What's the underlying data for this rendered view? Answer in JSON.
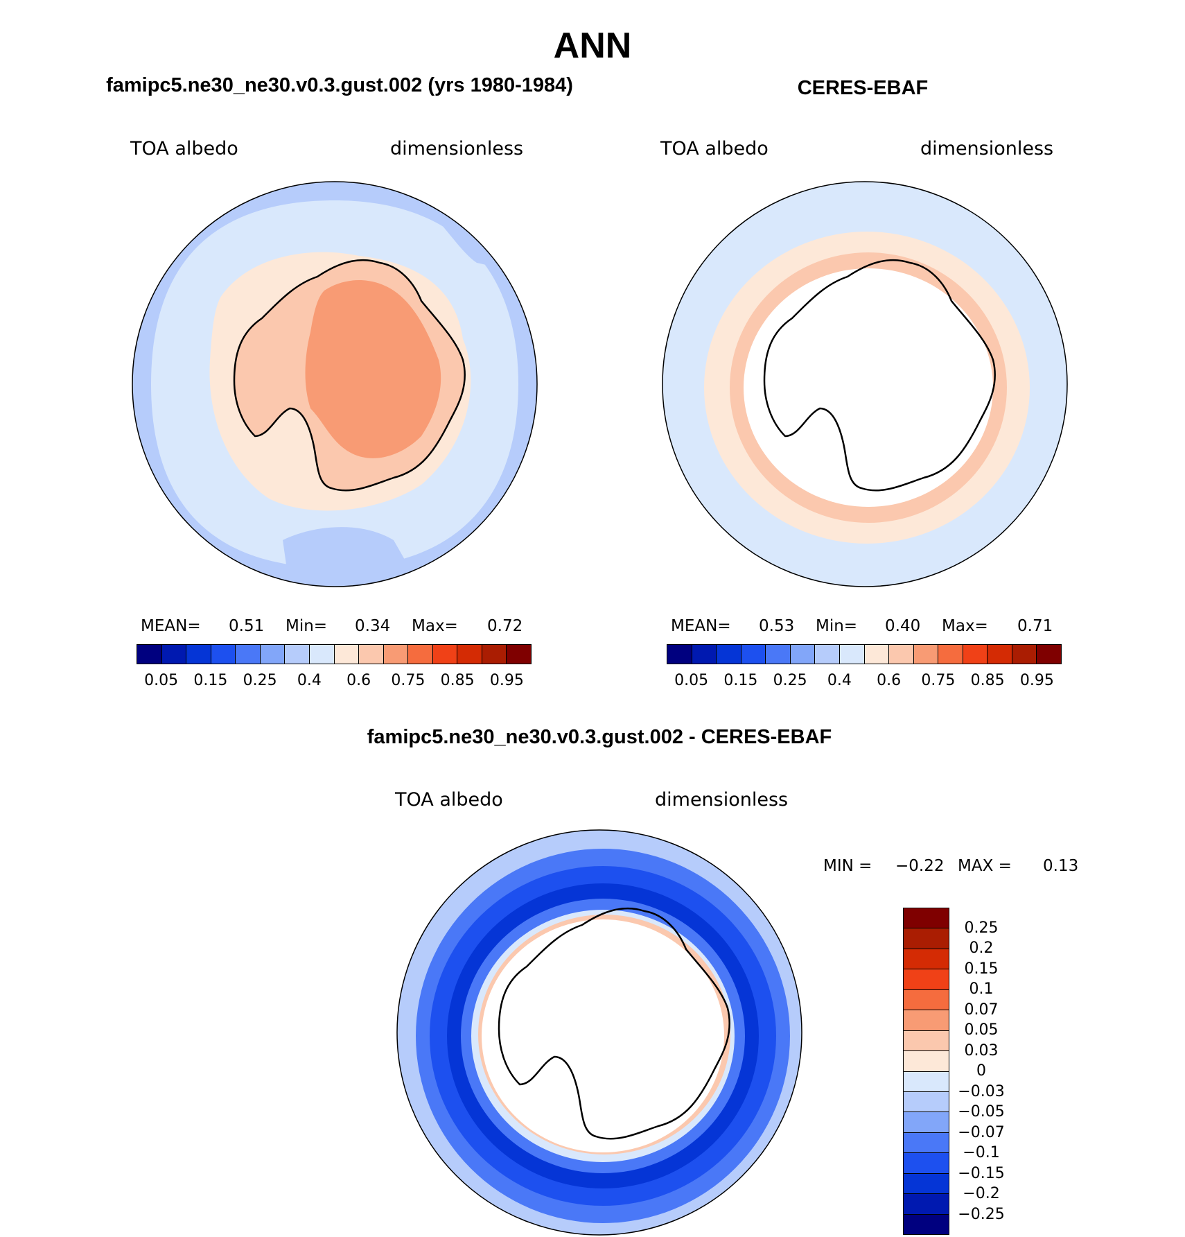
{
  "title": "ANN",
  "panels": {
    "model": {
      "title": "famipc5.ne30_ne30.v0.3.gust.002 (yrs 1980-1984)",
      "left_label": "TOA albedo",
      "right_label": "dimensionless",
      "stats": {
        "mean_label": "MEAN=",
        "mean": "0.51",
        "min_label": "Min=",
        "min": "0.34",
        "max_label": "Max=",
        "max": "0.72"
      }
    },
    "obs": {
      "title": "CERES-EBAF",
      "left_label": "TOA albedo",
      "right_label": "dimensionless",
      "stats": {
        "mean_label": "MEAN=",
        "mean": "0.53",
        "min_label": "Min=",
        "min": "0.40",
        "max_label": "Max=",
        "max": "0.71"
      }
    },
    "diff": {
      "title": "famipc5.ne30_ne30.v0.3.gust.002 - CERES-EBAF",
      "left_label": "TOA albedo",
      "right_label": "dimensionless",
      "stats": {
        "min_label": "MIN =",
        "min": "−0.22",
        "max_label": "MAX =",
        "max": "0.13"
      }
    }
  },
  "colorbars": {
    "abs": {
      "colors": [
        "#00007f",
        "#0019b0",
        "#0535d6",
        "#1d50ef",
        "#4a78f7",
        "#82a6f9",
        "#b6ccfb",
        "#d9e8fc",
        "#fde8d8",
        "#fbc8ae",
        "#f89b74",
        "#f56c3e",
        "#f04117",
        "#d42b04",
        "#aa1d02",
        "#7f0000"
      ],
      "ticks": [
        "0.05",
        "0.15",
        "0.25",
        "0.4",
        "0.6",
        "0.75",
        "0.85",
        "0.95"
      ]
    },
    "diff": {
      "colors": [
        "#7f0000",
        "#aa1d02",
        "#d42b04",
        "#f04117",
        "#f56c3e",
        "#f89b74",
        "#fbc8ae",
        "#fde8d8",
        "#d9e8fc",
        "#b6ccfb",
        "#82a6f9",
        "#4a78f7",
        "#1d50ef",
        "#0535d6",
        "#0019b0",
        "#00007f"
      ],
      "ticks": [
        "0.25",
        "0.2",
        "0.15",
        "0.1",
        "0.07",
        "0.05",
        "0.03",
        "0",
        "−0.03",
        "−0.05",
        "−0.07",
        "−0.1",
        "−0.15",
        "−0.2",
        "−0.25"
      ]
    }
  }
}
